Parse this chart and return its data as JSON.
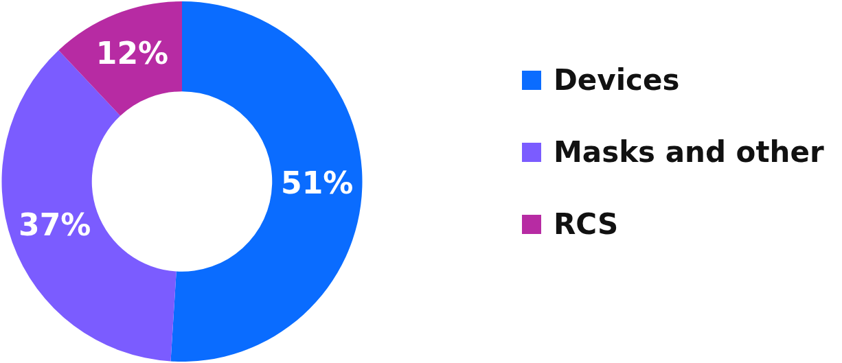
{
  "chart_data": {
    "type": "donut",
    "categories": [
      "Devices",
      "Masks and other",
      "RCS"
    ],
    "values": [
      51,
      37,
      12
    ],
    "colors": [
      "#0a6cff",
      "#7b5cff",
      "#b72ba3"
    ],
    "value_labels": [
      "51%",
      "37%",
      "12%"
    ],
    "legend": "right"
  }
}
